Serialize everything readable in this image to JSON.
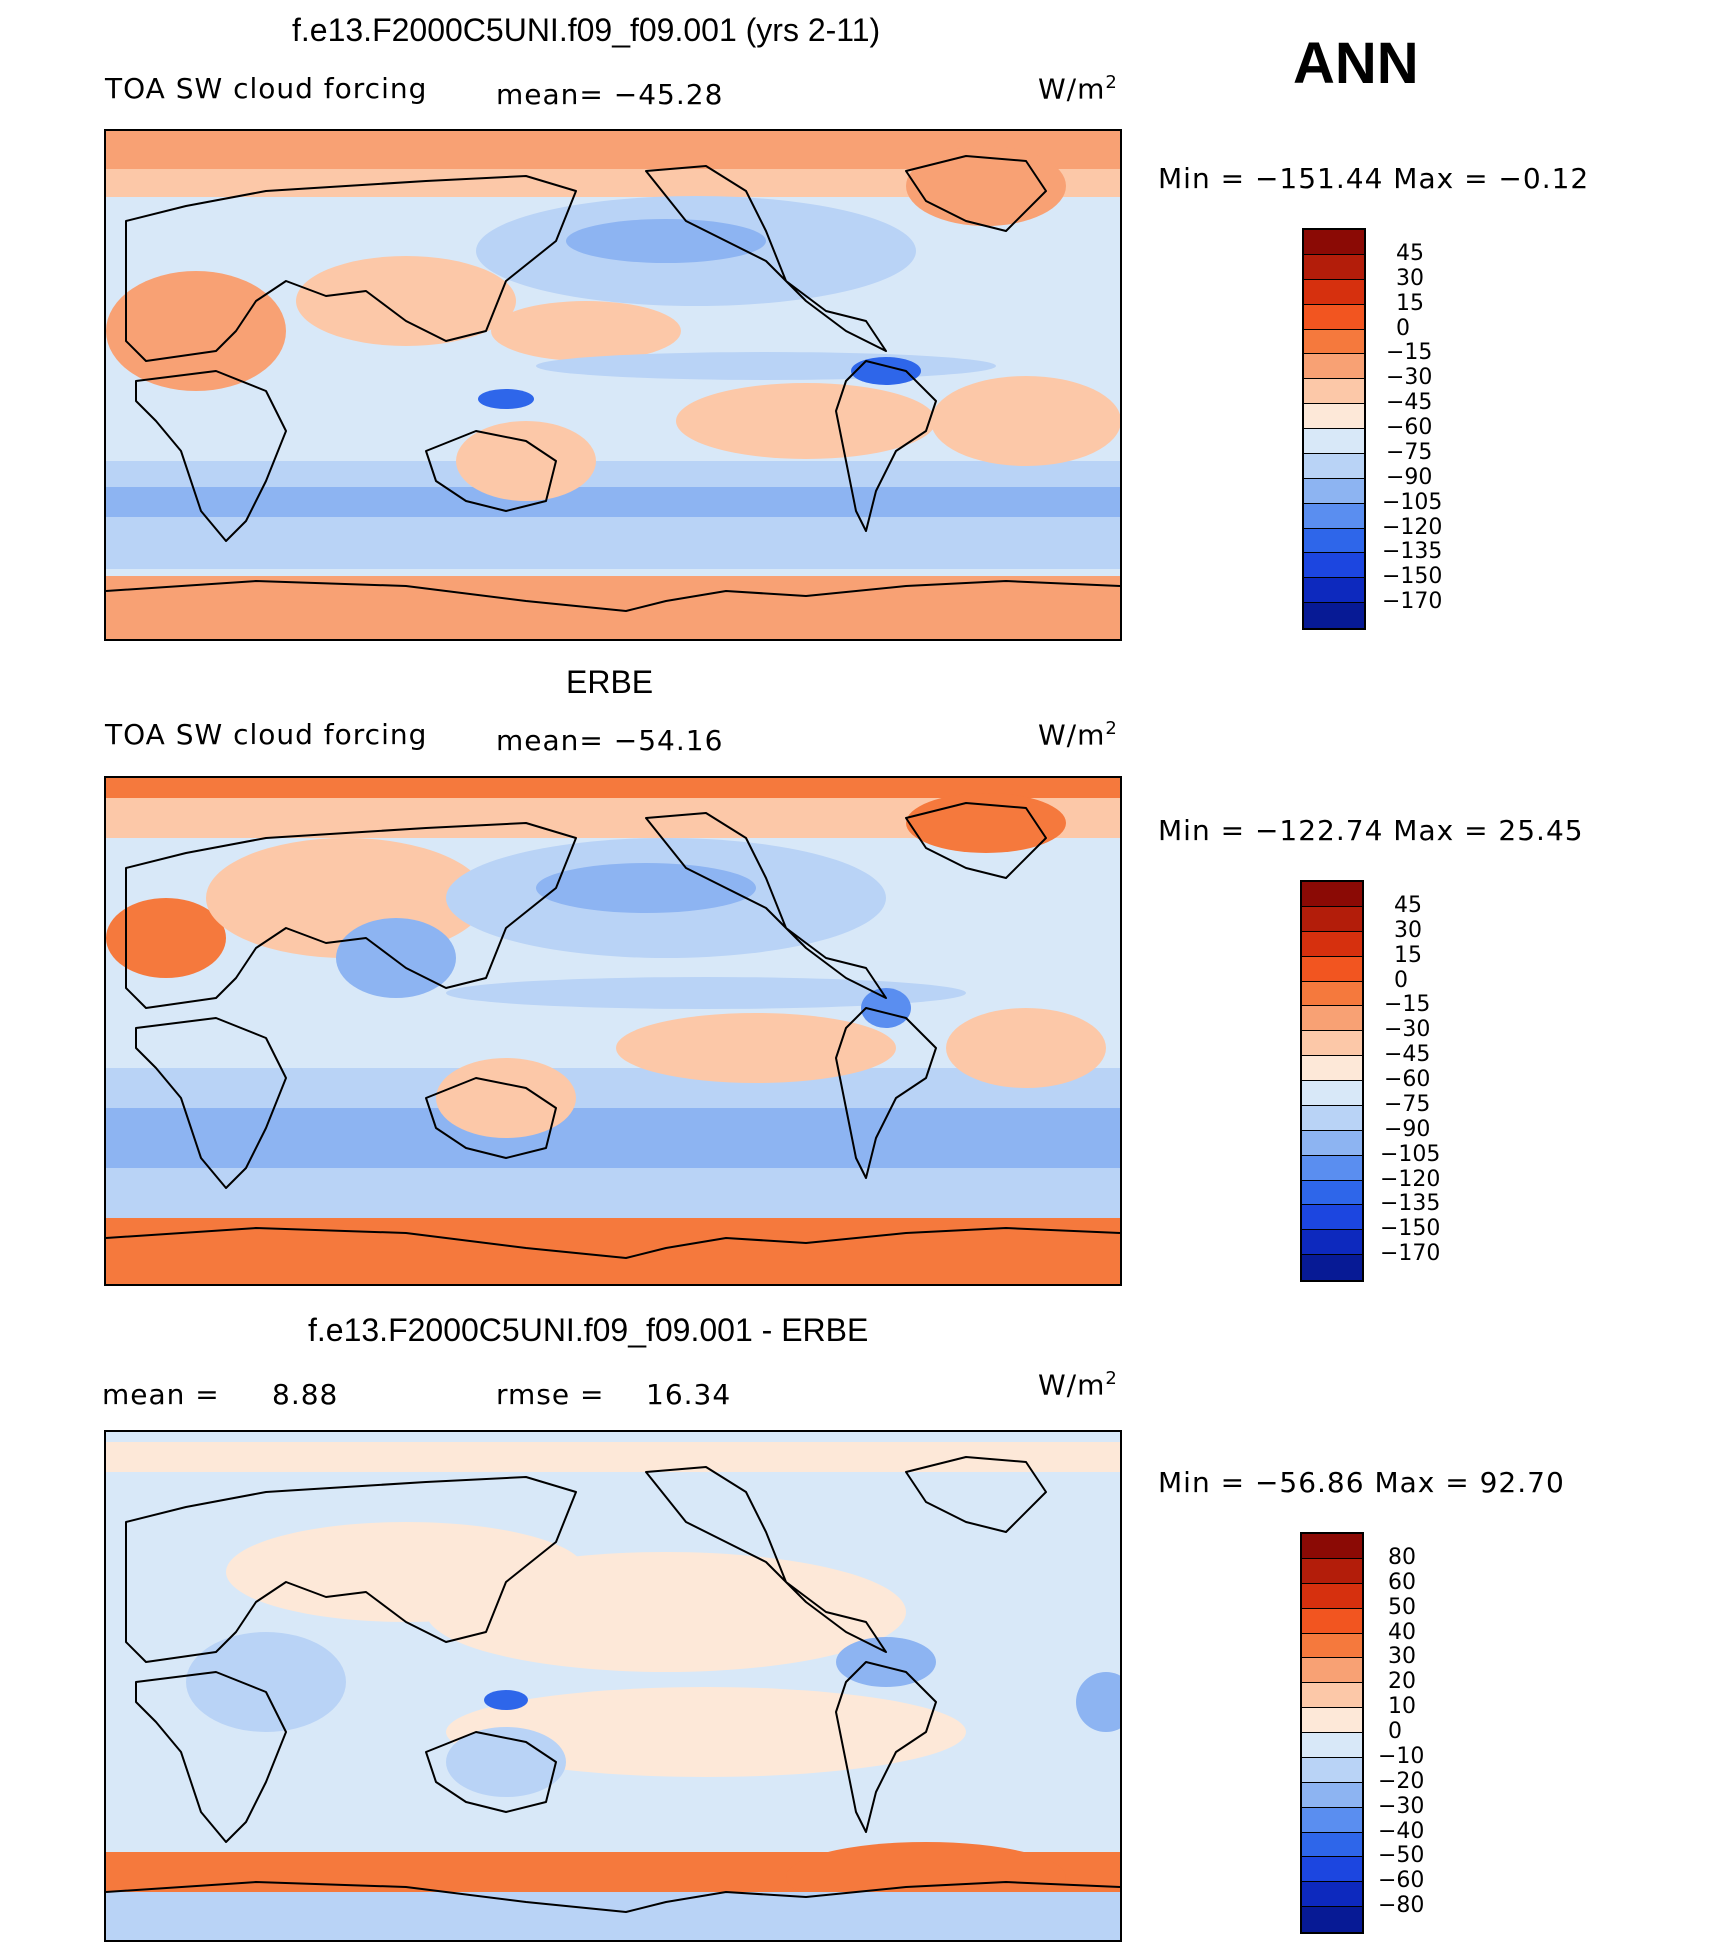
{
  "season": "ANN",
  "chart_data": [
    {
      "type": "heatmap",
      "panel": "model",
      "title": "f.e13.F2000C5UNI.f09_f09.001 (yrs 2-11)",
      "variable": "TOA SW cloud forcing",
      "mean_text": "mean= −45.28",
      "units_text": "W/m",
      "units_sup": "2",
      "minmax_text": "Min = −151.44 Max =  −0.12",
      "levels": [
        "45",
        "30",
        "15",
        "0",
        "−15",
        "−30",
        "−45",
        "−60",
        "−75",
        "−90",
        "−105",
        "−120",
        "−135",
        "−150",
        "−170"
      ],
      "colors": [
        "#8b0a05",
        "#b31d0a",
        "#d6300e",
        "#f25520",
        "#f5793d",
        "#f8a174",
        "#fcc8a8",
        "#fde8d8",
        "#d8e8f8",
        "#b9d3f6",
        "#8db4f2",
        "#5a8ef0",
        "#2e66ea",
        "#1c46e0",
        "#0d29be",
        "#071a95"
      ],
      "regions": [
        {
          "cls": "pale",
          "level": "−60"
        },
        {
          "cls": "midred",
          "level": "−30"
        },
        {
          "cls": "red",
          "level": "−15"
        },
        {
          "cls": "lightblue",
          "level": "−75"
        },
        {
          "cls": "blue",
          "level": "−90"
        },
        {
          "cls": "deepblue",
          "level": "−120"
        }
      ]
    },
    {
      "type": "heatmap",
      "panel": "obs",
      "title": "ERBE",
      "variable": "TOA SW cloud forcing",
      "mean_text": "mean= −54.16",
      "units_text": "W/m",
      "units_sup": "2",
      "minmax_text": "Min = −122.74 Max =  25.45",
      "levels": [
        "45",
        "30",
        "15",
        "0",
        "−15",
        "−30",
        "−45",
        "−60",
        "−75",
        "−90",
        "−105",
        "−120",
        "−135",
        "−150",
        "−170"
      ],
      "colors": [
        "#8b0a05",
        "#b31d0a",
        "#d6300e",
        "#f25520",
        "#f5793d",
        "#f8a174",
        "#fcc8a8",
        "#fde8d8",
        "#d8e8f8",
        "#b9d3f6",
        "#8db4f2",
        "#5a8ef0",
        "#2e66ea",
        "#1c46e0",
        "#0d29be",
        "#071a95"
      ],
      "regions": [
        {
          "cls": "pale",
          "level": "−60"
        },
        {
          "cls": "midred",
          "level": "−30"
        },
        {
          "cls": "red",
          "level": "0"
        },
        {
          "cls": "lightblue",
          "level": "−75"
        },
        {
          "cls": "blue",
          "level": "−90"
        },
        {
          "cls": "deepblue",
          "level": "−105"
        }
      ]
    },
    {
      "type": "heatmap",
      "panel": "difference",
      "title": "f.e13.F2000C5UNI.f09_f09.001 - ERBE",
      "mean_label": "mean =",
      "mean_value": "8.88",
      "rmse_label": "rmse =",
      "rmse_value": "16.34",
      "units_text": "W/m",
      "units_sup": "2",
      "minmax_text": "Min = −56.86 Max =  92.70",
      "levels": [
        "80",
        "60",
        "50",
        "40",
        "30",
        "20",
        "10",
        "0",
        "−10",
        "−20",
        "−30",
        "−40",
        "−50",
        "−60",
        "−80"
      ],
      "colors": [
        "#8b0a05",
        "#b31d0a",
        "#d6300e",
        "#f25520",
        "#f5793d",
        "#f8a174",
        "#fcc8a8",
        "#fde8d8",
        "#d8e8f8",
        "#b9d3f6",
        "#8db4f2",
        "#5a8ef0",
        "#2e66ea",
        "#1c46e0",
        "#0d29be",
        "#071a95"
      ],
      "regions": [
        {
          "cls": "pale",
          "level": "0"
        },
        {
          "cls": "midred",
          "level": "10"
        },
        {
          "cls": "red",
          "level": "40"
        },
        {
          "cls": "lightblue",
          "level": "−10"
        },
        {
          "cls": "blue",
          "level": "−20"
        },
        {
          "cls": "deepblue",
          "level": "−40"
        }
      ]
    }
  ]
}
